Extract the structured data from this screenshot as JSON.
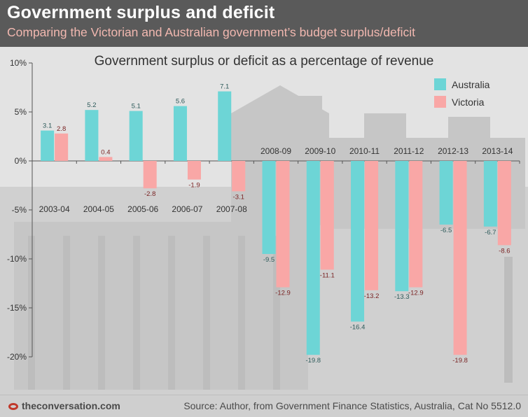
{
  "header": {
    "title": "Government surplus and deficit",
    "subtitle": "Comparing the Victorian and Australian government’s budget surplus/deficit"
  },
  "footer": {
    "brand": "theconversation.com",
    "source": "Source: Author, from Government Finance Statistics, Australia, Cat No 5512.0"
  },
  "colors": {
    "australia": "#6dd5d6",
    "victoria": "#f9a7a6"
  },
  "chart_data": {
    "type": "bar",
    "title": "Government surplus or deficit as a percentage of revenue",
    "categories": [
      "2003-04",
      "2004-05",
      "2005-06",
      "2006-07",
      "2007-08",
      "2008-09",
      "2009-10",
      "2010-11",
      "2011-12",
      "2012-13",
      "2013-14"
    ],
    "series": [
      {
        "name": "Australia",
        "values": [
          3.1,
          5.2,
          5.1,
          5.6,
          7.1,
          -9.5,
          -19.8,
          -16.4,
          -13.3,
          -6.5,
          -6.7
        ]
      },
      {
        "name": "Victoria",
        "values": [
          2.8,
          0.4,
          -2.8,
          -1.9,
          -3.1,
          -12.9,
          -11.1,
          -13.2,
          -12.9,
          -19.8,
          -8.6
        ]
      }
    ],
    "data_labels": {
      "Australia": [
        "3.1",
        "5.2",
        "5.1",
        "5.6",
        "7.1",
        "-9.5",
        "-19.8",
        "-16.4",
        "-13.3",
        "-6.5",
        "-6.7"
      ],
      "Victoria": [
        "2.8",
        "0.4",
        "-2.8",
        "-1.9",
        "-3.1",
        "-12.9",
        "-11.1",
        "-13.2",
        "-12.9",
        "-19.8",
        "-8.6"
      ]
    },
    "ylim": [
      -20,
      10
    ],
    "yticks": [
      10,
      5,
      0,
      -5,
      -10,
      -15,
      -20
    ],
    "ytick_labels": [
      "10%",
      "5%",
      "0%",
      "-5%",
      "-10%",
      "-15%",
      "-20%"
    ],
    "legend": [
      "Australia",
      "Victoria"
    ],
    "legend_position": "top-right",
    "grid": false
  }
}
